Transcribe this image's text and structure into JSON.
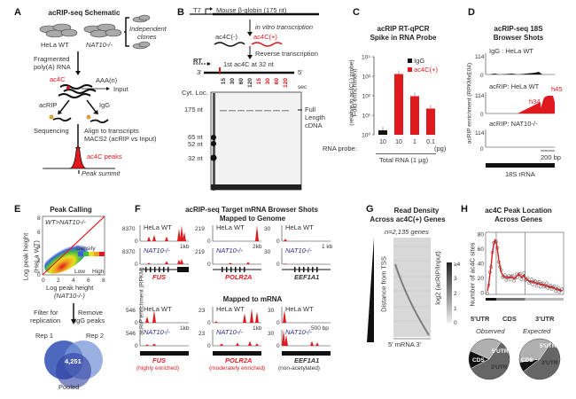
{
  "colors": {
    "red": "#e0191f",
    "blue": "#2c2c8c",
    "black": "#111111",
    "grey": "#777777"
  },
  "panelA": {
    "label": "A",
    "title": "acRIP-seq Schematic",
    "hela_wt": "HeLa WT",
    "nat10": "NAT10-/-",
    "independent": "Independent",
    "clones": "clones",
    "fragmented": "Fragmented",
    "polya": "poly(A) RNA",
    "ac4c": "ac4C",
    "aaa": "AAA(n)",
    "input": "Input",
    "acrip": "acRIP",
    "igg": "IgG",
    "sequencing": "Sequencing",
    "align": "Align to transcripts",
    "macs2": "MACS2 (acRIP vs Input)",
    "peaks": "ac4C peaks",
    "summit": "Peak summit"
  },
  "panelB": {
    "label": "B",
    "t7": "T7",
    "globin": "Mouse β-globin (175 nt)",
    "ivt": "in vitro transcription",
    "ac4c_neg": "ac4C(-)",
    "ac4c_pos": "ac4C(+)",
    "rt_label": "Reverse transcription",
    "rt": "RT",
    "three": "3'",
    "five": "5'",
    "first_ac4c": "1st ac4C at 32 nt",
    "cyt_loc": "Cyt. Loc.",
    "sec": "sec",
    "lanes_black": [
      "15",
      "30",
      "60",
      "120"
    ],
    "lanes_red": [
      "15",
      "30",
      "60",
      "120"
    ],
    "markers": [
      "175 nt",
      "65 nt",
      "52 nt",
      "32 nt"
    ],
    "full": "Full",
    "length": "Length",
    "cdna": "cDNA"
  },
  "panelC": {
    "label": "C",
    "title1": "acRIP RT-qPCR",
    "title2": "Spike in RNA Probe",
    "ylabel1": "Fold enrichment",
    "ylabel2": "(relative to ac4C(-) probe)",
    "legend_igg": "IgG",
    "legend_ac4c": "ac4C(+)",
    "probe_label": "RNA probe:",
    "total_rna": "Total RNA (1 μg)",
    "unit": "(pg)"
  },
  "panelD": {
    "label": "D",
    "title1": "acRIP-seq 18S",
    "title2": "Browser Shots",
    "ylabel": "acRIP enrichment (RPKMxE04)",
    "tracks": [
      {
        "name": "IgG : HeLa WT",
        "max": "114",
        "zero": "0"
      },
      {
        "name": "acRIP: HeLa WT",
        "max": "114",
        "zero": "0"
      },
      {
        "name": "acRIP: NAT10-/-",
        "max": "114",
        "zero": "0"
      }
    ],
    "h34": "h34",
    "h45": "h45",
    "scale": "200 bp",
    "rrna": "18S rRNA"
  },
  "panelE": {
    "label": "E",
    "title": "Peak Calling",
    "annot": "WT>NAT10-/-",
    "ylabel1": "Log peak height",
    "ylabel2": "(HeLa WT)",
    "xlabel1": "Log peak height",
    "xlabel2": "(NAT10-/-)",
    "ticks": [
      "0",
      "2",
      "4",
      "6",
      "8"
    ],
    "density": "Density",
    "low": "Low",
    "high": "High",
    "filter1": "Filter for",
    "filter2": "replication",
    "remove1": "Remove",
    "remove2": "IgG peaks",
    "rep1": "Rep 1",
    "rep2": "Rep 2",
    "pooled": "Pooled",
    "overlap": "4,251"
  },
  "panelF": {
    "label": "F",
    "title": "acRIP-seq Target mRNA Browser Shots",
    "genome": "Mapped to Genome",
    "mrna": "Mapped to mRNA",
    "ylabel": "acRIP enrichment (RPKM)",
    "wt": "HeLa WT",
    "ko": "NAT10-/-",
    "genome_cols": [
      {
        "gene": "FUS",
        "max": "8370",
        "scale": "1kb"
      },
      {
        "gene": "POLR2A",
        "max": "219",
        "scale": "2kb"
      },
      {
        "gene": "EEF1A1",
        "max": "30",
        "scale": "1 kb"
      }
    ],
    "mrna_cols": [
      {
        "gene": "FUS",
        "max": "546",
        "scale": "1kb",
        "note": "(highly enriched)"
      },
      {
        "gene": "POLR2A",
        "max": "23",
        "scale": "1kb",
        "note": "(moderately enriched)"
      },
      {
        "gene": "EEF1A1",
        "max": "30",
        "scale": "500 bp",
        "note": "(non-acetylated)"
      }
    ],
    "zero": "0"
  },
  "panelG": {
    "label": "G",
    "title1": "Read Density",
    "title2": "Across ac4C(+) Genes",
    "n": "n=2,135 genes",
    "ylabel": "Distance from TSS",
    "xlabel": "5'  mRNA  3'",
    "cbar_label": "log2 (acRIP/Input)",
    "cbar_ticks": [
      "≥4",
      "3",
      "2",
      "1",
      "0"
    ]
  },
  "panelH": {
    "label": "H",
    "title1": "ac4C Peak Location",
    "title2": "Across Genes",
    "observed": "Observed",
    "expected": "Expected",
    "cds": "CDS",
    "utr5": "5'UTR",
    "utr3": "3'UTR"
  },
  "chart_data": [
    {
      "type": "bar",
      "title": "acRIP RT-qPCR Spike in RNA Probe",
      "ylabel": "Fold enrichment (relative to ac4C(-) probe)",
      "xlabel": "Total RNA (1 μg)",
      "yscale": "log",
      "ylim": [
        1,
        10000
      ],
      "yticks": [
        "10⁰",
        "10¹",
        "10²",
        "10³",
        "10⁴"
      ],
      "categories": [
        "10",
        "10",
        "1",
        "0.1"
      ],
      "series": [
        {
          "name": "IgG",
          "color": "#111111",
          "values": [
            1.7,
            null,
            null,
            null
          ]
        },
        {
          "name": "ac4C(+)",
          "color": "#e0191f",
          "values": [
            null,
            1300,
            95,
            22
          ]
        }
      ],
      "legend": "top-right"
    },
    {
      "type": "line",
      "title": "ac4C Peak Location Across Genes",
      "ylabel": "Number of ac4C sites",
      "ylim": [
        0,
        80
      ],
      "yticks": [
        "0",
        "20",
        "40",
        "60",
        "80"
      ],
      "regions": [
        "5'UTR",
        "CDS",
        "3'UTR"
      ],
      "x": [
        0,
        1,
        2,
        3,
        4,
        5,
        6,
        7,
        8,
        9,
        10,
        11,
        12,
        13,
        14,
        15,
        16,
        17,
        18,
        19,
        20,
        21,
        22,
        23,
        24,
        25,
        26,
        27,
        28,
        29,
        30,
        31,
        32,
        33,
        34,
        35,
        36,
        37,
        38,
        39,
        40,
        41,
        42,
        43,
        44,
        45,
        46,
        47,
        48,
        49,
        50,
        51,
        52,
        53,
        54,
        55,
        56,
        57,
        58,
        59
      ],
      "values": [
        2,
        10,
        25,
        38,
        55,
        65,
        72,
        70,
        58,
        45,
        35,
        28,
        24,
        22,
        21,
        20,
        21,
        20,
        21,
        22,
        20,
        19,
        20,
        22,
        24,
        25,
        23,
        21,
        22,
        24,
        20,
        18,
        17,
        16,
        15,
        15,
        14,
        15,
        13,
        12,
        13,
        12,
        11,
        12,
        10,
        11,
        9,
        10,
        9,
        8,
        7,
        8,
        7,
        6,
        5,
        5,
        4,
        4,
        3,
        2
      ]
    },
    {
      "type": "pie",
      "title": "Observed",
      "categories": [
        "CDS",
        "5'UTR",
        "3'UTR"
      ],
      "values": [
        58,
        14,
        28
      ]
    },
    {
      "type": "pie",
      "title": "Expected",
      "categories": [
        "CDS",
        "5'UTR",
        "3'UTR"
      ],
      "values": [
        55,
        8,
        37
      ]
    }
  ]
}
